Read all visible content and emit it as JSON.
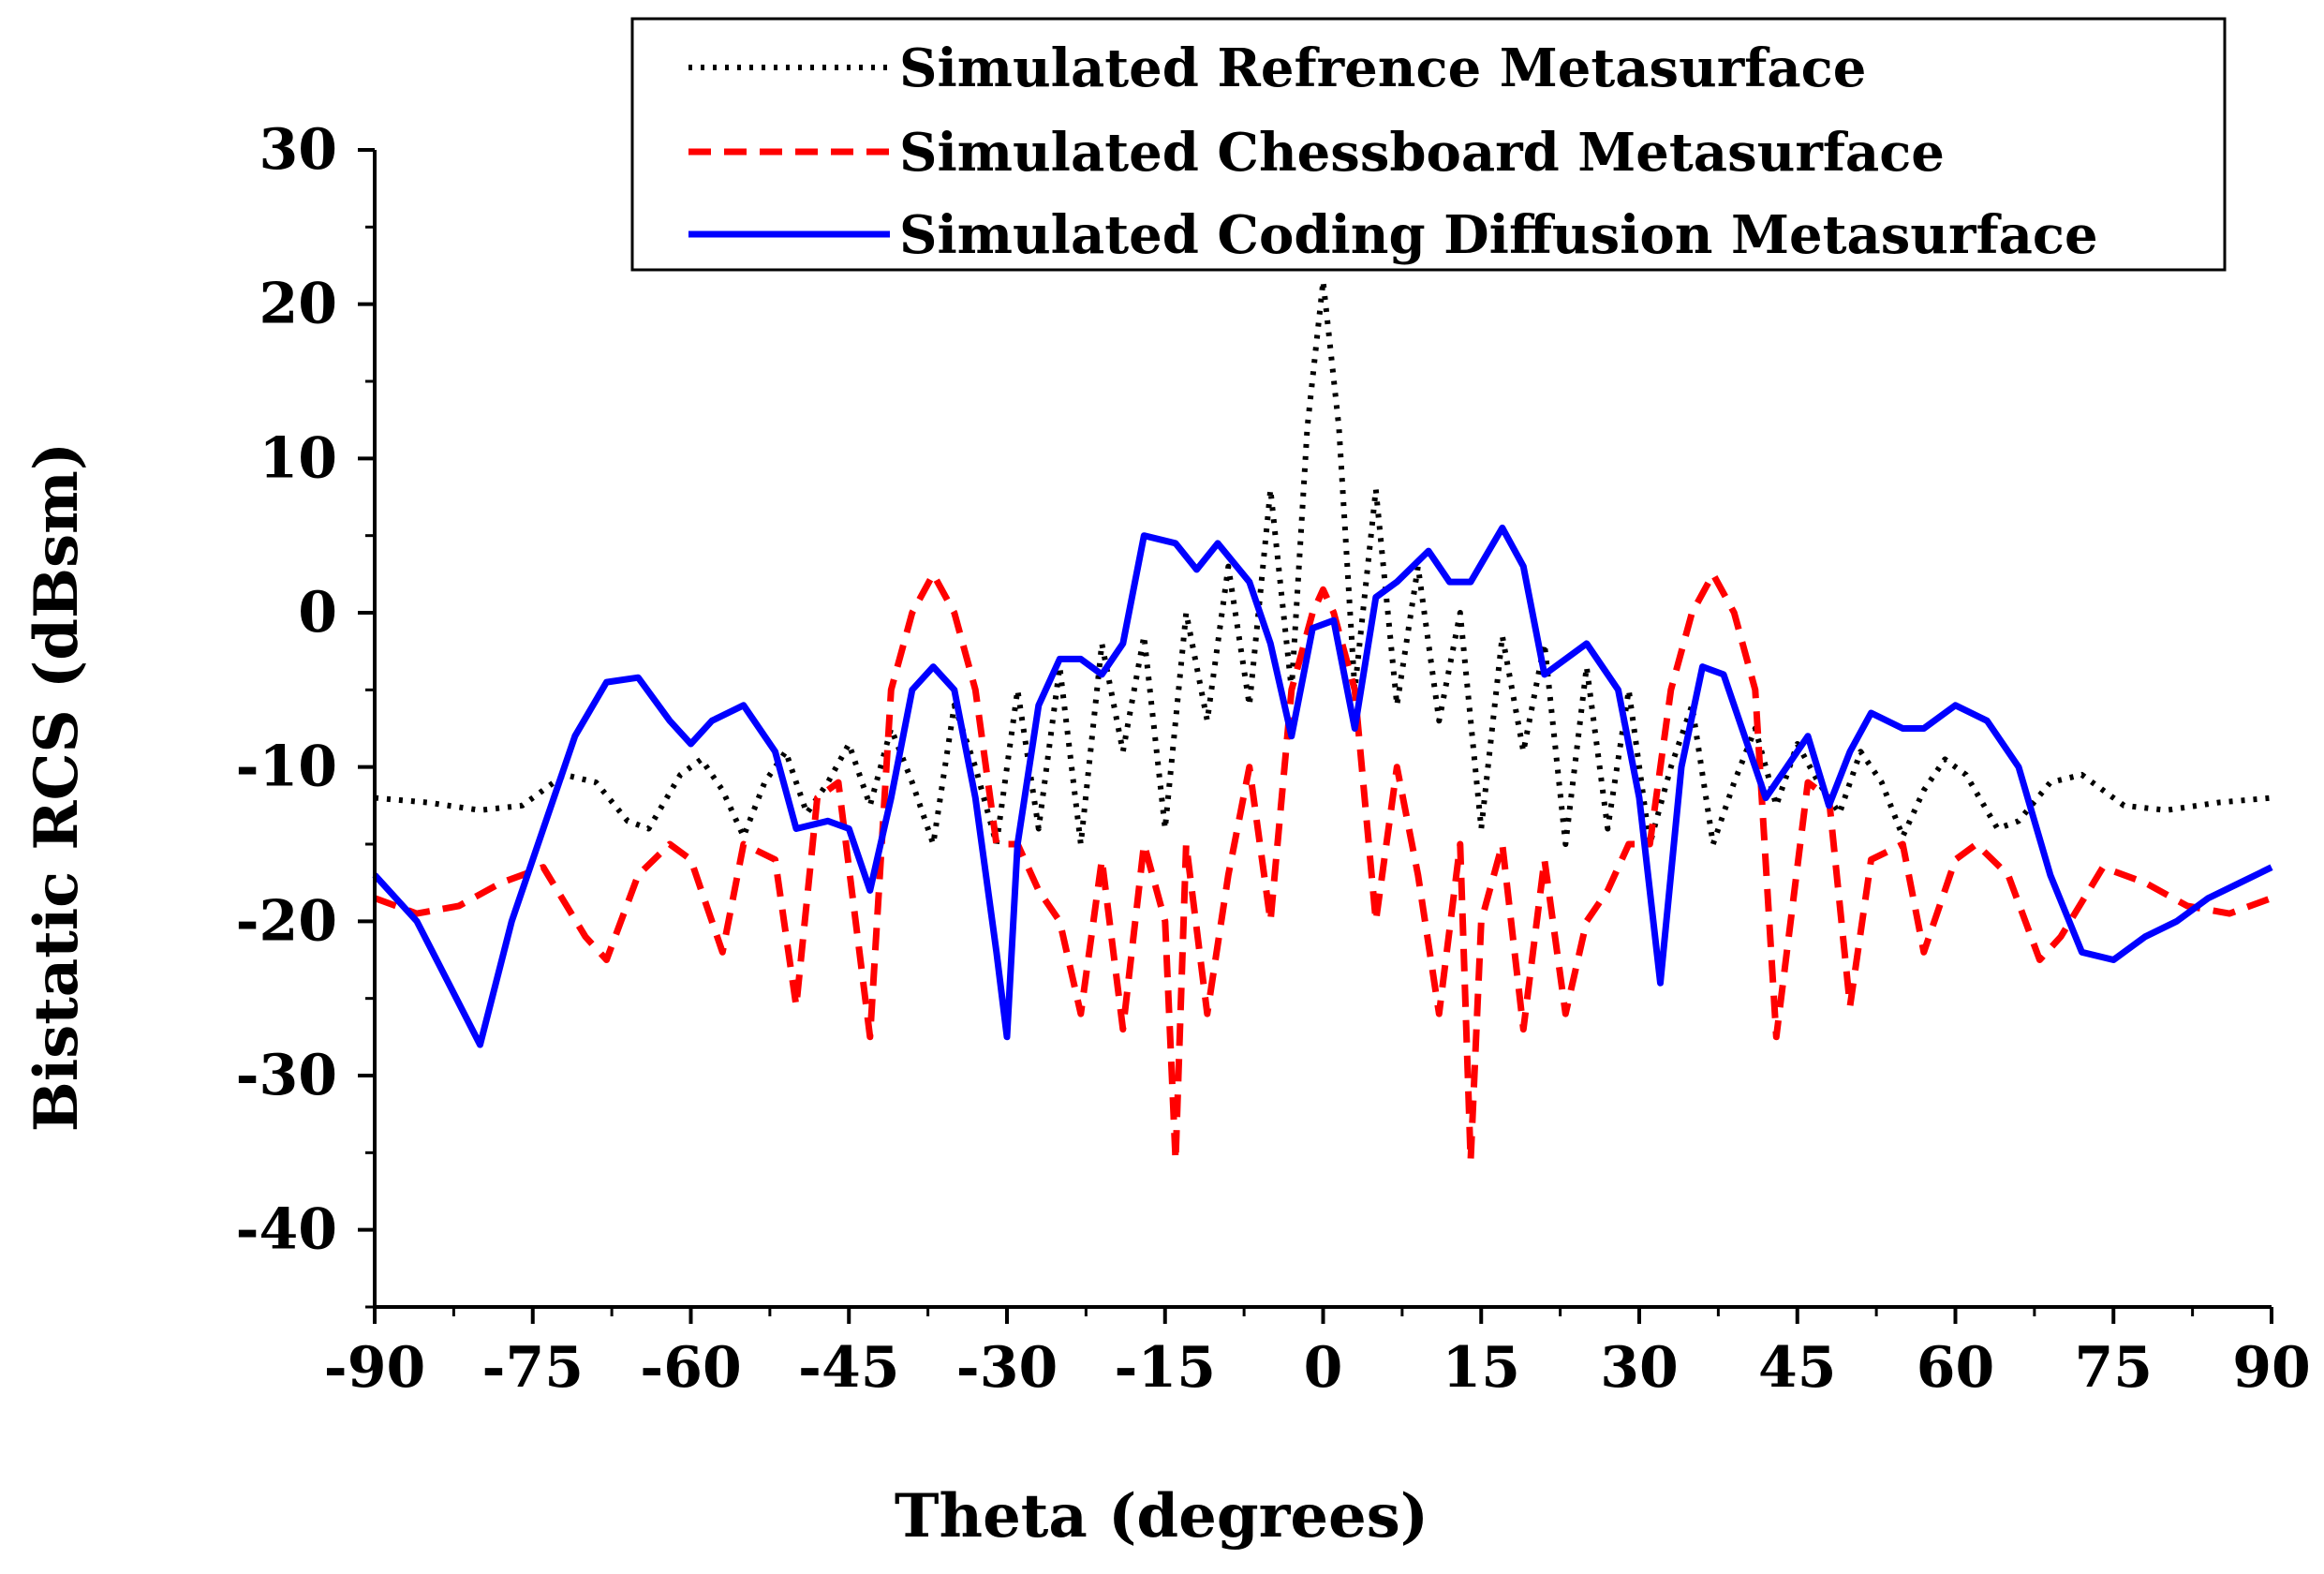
{
  "chart_data": {
    "type": "line",
    "xlabel": "Theta (degrees)",
    "ylabel": "Bistatic RCS (dBsm)",
    "xlim": [
      -90,
      90
    ],
    "ylim": [
      -45,
      30
    ],
    "x_ticks": [
      "-90",
      "-75",
      "-60",
      "-45",
      "-30",
      "-15",
      "0",
      "15",
      "30",
      "45",
      "60",
      "75",
      "90"
    ],
    "x_tick_values": [
      -90,
      -75,
      -60,
      -45,
      -30,
      -15,
      0,
      15,
      30,
      45,
      60,
      75,
      90
    ],
    "y_ticks": [
      "30",
      "20",
      "10",
      "0",
      "-10",
      "-20",
      "-30",
      "-40"
    ],
    "y_tick_values": [
      30,
      20,
      10,
      0,
      -10,
      -20,
      -30,
      -40
    ],
    "legend_position": "top-right",
    "series": [
      {
        "name": "Simulated Refrence Metasurface",
        "color": "#000000",
        "style": "dotted",
        "x": [
          -90,
          -85,
          -80,
          -76,
          -72,
          -69,
          -66,
          -64,
          -61,
          -59,
          -57,
          -55,
          -53,
          -51,
          -49,
          -47,
          -45,
          -43,
          -41,
          -39,
          -37,
          -35,
          -33,
          -31,
          -29,
          -27,
          -25,
          -23,
          -21,
          -19,
          -17,
          -15,
          -13,
          -11,
          -9,
          -7,
          -5,
          -3,
          -1.5,
          0,
          1.5,
          3,
          5,
          7,
          9,
          11,
          13,
          15,
          17,
          19,
          21,
          23,
          25,
          27,
          29,
          31,
          33,
          35,
          37,
          39,
          41,
          43,
          45,
          47,
          49,
          51,
          53,
          55,
          57,
          59,
          61,
          64,
          66,
          69,
          72,
          76,
          80,
          85,
          90
        ],
        "y": [
          -12,
          -12.3,
          -12.8,
          -12.5,
          -10.5,
          -11,
          -13.5,
          -14,
          -10.5,
          -9.5,
          -11.5,
          -14.5,
          -11,
          -9,
          -13,
          -11,
          -8.5,
          -12.5,
          -7.5,
          -11,
          -15,
          -6,
          -10,
          -15,
          -5,
          -14,
          -3.5,
          -15,
          -2,
          -9,
          -1.5,
          -14,
          0,
          -7,
          3,
          -6,
          8,
          -5,
          12,
          21.5,
          12,
          -5,
          8,
          -6,
          3,
          -7,
          0,
          -14,
          -1.5,
          -9,
          -2,
          -15,
          -3.5,
          -14,
          -5,
          -15,
          -10,
          -6,
          -15,
          -11,
          -7.5,
          -12.5,
          -8.5,
          -11,
          -13,
          -9,
          -11,
          -14.5,
          -11.5,
          -9.5,
          -10.5,
          -14,
          -13.5,
          -11,
          -10.5,
          -12.5,
          -12.8,
          -12.3,
          -12
        ]
      },
      {
        "name": "Simulated Chessboard Metasurface",
        "color": "#ff0000",
        "style": "dashed",
        "x": [
          -90,
          -86,
          -82,
          -78,
          -74,
          -70,
          -68,
          -65,
          -62,
          -60,
          -57,
          -55,
          -52,
          -50,
          -48,
          -46,
          -43,
          -41,
          -39,
          -37,
          -35,
          -33,
          -31,
          -29,
          -27,
          -25,
          -23,
          -21,
          -19,
          -17,
          -15,
          -14,
          -13,
          -11,
          -9,
          -7,
          -5,
          -3,
          -1,
          0,
          1,
          3,
          5,
          7,
          9,
          11,
          13,
          14,
          15,
          17,
          19,
          21,
          23,
          25,
          27,
          29,
          31,
          33,
          35,
          37,
          39,
          41,
          43,
          46,
          48,
          50,
          52,
          55,
          57,
          60,
          62,
          65,
          68,
          70,
          74,
          78,
          82,
          86,
          90
        ],
        "y": [
          -18.5,
          -19.5,
          -19,
          -17.5,
          -16.5,
          -21,
          -22.5,
          -17,
          -15,
          -16,
          -22,
          -15,
          -16,
          -25.5,
          -12,
          -11,
          -27.5,
          -5,
          0,
          2.5,
          0,
          -5,
          -15,
          -15,
          -18,
          -20,
          -26,
          -16,
          -27,
          -15,
          -20,
          -35.5,
          -15,
          -26,
          -17,
          -10,
          -20,
          -5,
          0,
          1.5,
          0,
          -5,
          -20,
          -10,
          -17,
          -26,
          -15,
          -35.5,
          -20,
          -15,
          -27,
          -16,
          -26,
          -20,
          -18,
          -15,
          -15,
          -5,
          0,
          2.5,
          0,
          -5,
          -27.5,
          -11,
          -12,
          -25.5,
          -16,
          -15,
          -22,
          -16,
          -15,
          -17,
          -22.5,
          -21,
          -16.5,
          -17.5,
          -19,
          -19.5,
          -18.5
        ]
      },
      {
        "name": "Simulated Coding Diffusion Metasurface",
        "color": "#0000ff",
        "style": "solid",
        "x": [
          -90,
          -86,
          -83,
          -80,
          -77,
          -74,
          -71,
          -68,
          -65,
          -62,
          -60,
          -58,
          -55,
          -52,
          -50,
          -47,
          -45,
          -43,
          -41,
          -39,
          -37,
          -35,
          -33,
          -31,
          -30,
          -29,
          -27,
          -25,
          -23,
          -21,
          -19,
          -17,
          -14,
          -12,
          -10,
          -7,
          -5,
          -3,
          -1,
          1,
          3,
          5,
          7,
          10,
          12,
          14,
          17,
          19,
          21,
          23,
          25,
          28,
          30,
          32,
          34,
          36,
          38,
          40,
          42,
          44,
          46,
          48,
          50,
          52,
          55,
          57,
          60,
          63,
          66,
          69,
          72,
          75,
          78,
          81,
          84,
          87,
          90
        ],
        "y": [
          -17,
          -20,
          -24,
          -28,
          -20,
          -14,
          -8,
          -4.5,
          -4.2,
          -7,
          -8.5,
          -7,
          -6,
          -9,
          -14,
          -13.5,
          -14,
          -18,
          -12,
          -5,
          -3.5,
          -5,
          -12,
          -22,
          -27.5,
          -15,
          -6,
          -3,
          -3,
          -4,
          -2,
          5,
          4.5,
          2.8,
          4.5,
          2,
          -2,
          -8,
          -1,
          -0.5,
          -7.5,
          1,
          2,
          4,
          2,
          2,
          5.5,
          3,
          -4,
          -3,
          -2,
          -5,
          -12,
          -24,
          -10,
          -3.5,
          -4,
          -8,
          -12,
          -10,
          -8,
          -12.5,
          -9,
          -6.5,
          -7.5,
          -7.5,
          -6,
          -7,
          -10,
          -17,
          -22,
          -22.5,
          -21,
          -20,
          -18.5,
          -17.5,
          -16.5
        ]
      }
    ]
  }
}
